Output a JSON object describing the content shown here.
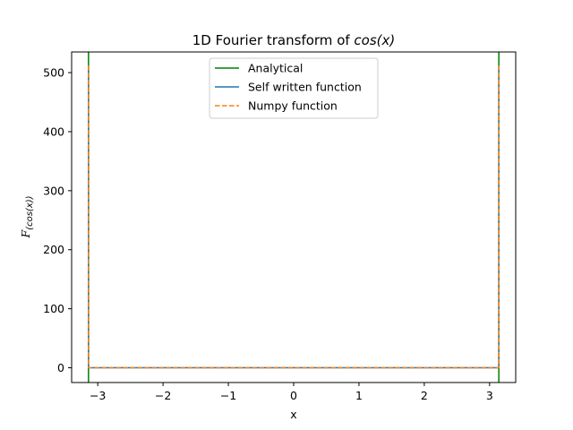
{
  "chart_data": {
    "type": "line",
    "title_prefix": "1D Fourier transform of ",
    "title_math": "cos(x)",
    "xlabel": "x",
    "ylabel_script": "F",
    "ylabel_sub": "(cos(x))",
    "xlim": [
      -3.4,
      3.4
    ],
    "ylim": [
      -25,
      535
    ],
    "xticks": [
      -3,
      -2,
      -1,
      0,
      1,
      2,
      3
    ],
    "xtick_labels": [
      "−3",
      "−2",
      "−1",
      "0",
      "1",
      "2",
      "3"
    ],
    "yticks": [
      0,
      100,
      200,
      300,
      400,
      500
    ],
    "ytick_labels": [
      "0",
      "100",
      "200",
      "300",
      "400",
      "500"
    ],
    "legend_position": "upper center",
    "grid": false,
    "series": [
      {
        "name": "Analytical",
        "color": "#008000",
        "style": "solid",
        "x": [
          -3.1416,
          -3.1416,
          null,
          3.1416,
          3.1416
        ],
        "y": [
          -25,
          535,
          null,
          -25,
          535
        ]
      },
      {
        "name": "Self written function",
        "color": "#1f77b4",
        "style": "solid",
        "x": [
          -3.1416,
          -3.1416,
          -3.13,
          3.13,
          3.1416,
          3.1416
        ],
        "y": [
          512,
          0,
          0,
          0,
          0,
          512
        ]
      },
      {
        "name": "Numpy function",
        "color": "#ff7f0e",
        "style": "dashed",
        "x": [
          -3.1416,
          -3.1416,
          -3.13,
          3.13,
          3.1416,
          3.1416
        ],
        "y": [
          512,
          0,
          0,
          0,
          0,
          512
        ]
      }
    ]
  }
}
